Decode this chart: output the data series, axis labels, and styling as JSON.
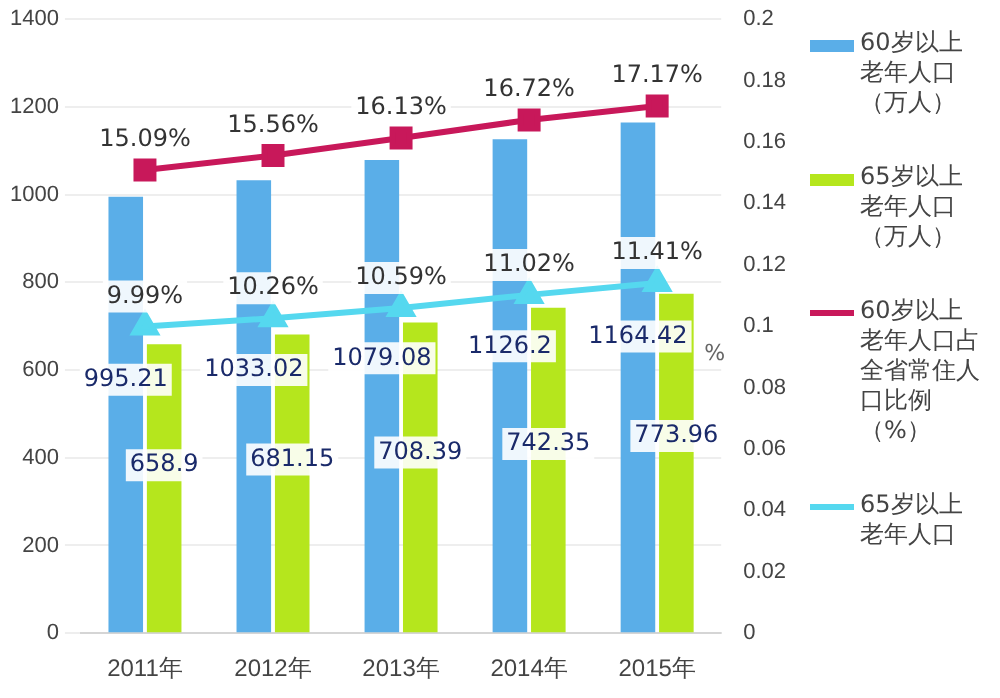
{
  "chart_data": {
    "type": "bar",
    "categories": [
      "2011年",
      "2012年",
      "2013年",
      "2014年",
      "2015年"
    ],
    "y2label": "%",
    "legend": "right",
    "grid": "y",
    "ylim": [
      0,
      1400
    ],
    "yticks": [
      0,
      200,
      400,
      600,
      800,
      1000,
      1200,
      1400
    ],
    "y2lim": [
      0,
      0.2
    ],
    "y2ticks": [
      0,
      0.02,
      0.04,
      0.06,
      0.08,
      0.1,
      0.12,
      0.14,
      0.16,
      0.18,
      0.2
    ],
    "series": [
      {
        "name": "60岁以上老年人口（万人）",
        "color": "#5aaee8",
        "values": [
          995.21,
          1033.02,
          1079.08,
          1126.2,
          1164.42
        ],
        "value_labels": [
          "995.21",
          "1033.02",
          "1079.08",
          "1126.2",
          "1164.42"
        ]
      },
      {
        "name": "65岁以上老年人口（万人）",
        "color": "#b5e61d",
        "values": [
          658.9,
          681.15,
          708.39,
          742.35,
          773.96
        ],
        "value_labels": [
          "658.9",
          "681.15",
          "708.39",
          "742.35",
          "773.96"
        ]
      },
      {
        "name": "60岁以上老年人口占全省常住人口比例（%）",
        "type": "line",
        "axis": "y2",
        "marker": "square",
        "color": "#c8185a",
        "values": [
          0.1509,
          0.1556,
          0.1613,
          0.1672,
          0.1717
        ],
        "value_labels": [
          "15.09%",
          "15.56%",
          "16.13%",
          "16.72%",
          "17.17%"
        ]
      },
      {
        "name": "65岁以上老年人口",
        "type": "line",
        "axis": "y2",
        "marker": "triangle",
        "color": "#55d8ef",
        "values": [
          0.0999,
          0.1026,
          0.1059,
          0.1102,
          0.1141
        ],
        "value_labels": [
          "9.99%",
          "10.26%",
          "10.59%",
          "11.02%",
          "11.41%"
        ]
      }
    ]
  }
}
